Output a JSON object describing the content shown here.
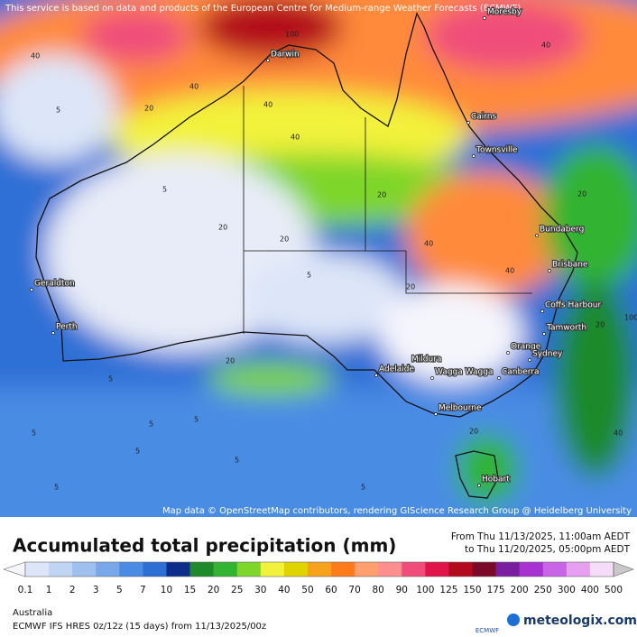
{
  "header": {
    "notice": "This service is based on data and products of the European Centre for Medium-range Weather Forecasts (ECMWF)"
  },
  "map": {
    "attribution": "Map data © OpenStreetMap contributors, rendering GIScience Research Group @ Heidelberg University",
    "cities": [
      "Moresby",
      "Darwin",
      "Cairns",
      "Townsville",
      "Bundaberg",
      "Brisbane",
      "Coffs Harbour",
      "Tamworth",
      "Orange",
      "Sydney",
      "Canberra",
      "Mildura",
      "Wagga Wagga",
      "Adelaide",
      "Melbourne",
      "Hobart",
      "Geraldton",
      "Perth"
    ],
    "contour_labels": [
      "40",
      "100",
      "40",
      "20",
      "40",
      "40",
      "20",
      "5",
      "5",
      "20",
      "20",
      "5",
      "5",
      "5",
      "40",
      "20",
      "5",
      "5",
      "5",
      "20",
      "40",
      "20",
      "100",
      "5",
      "5",
      "20",
      "40",
      "20",
      "5",
      "40"
    ]
  },
  "legend": {
    "title": "Accumulated total precipitation (mm)",
    "from": "From Thu 11/13/2025, 11:00am AEDT",
    "to": "to Thu 11/20/2025, 05:00pm AEDT",
    "labels": [
      "0.1",
      "1",
      "2",
      "3",
      "5",
      "7",
      "10",
      "15",
      "20",
      "25",
      "30",
      "40",
      "50",
      "60",
      "70",
      "80",
      "90",
      "100",
      "125",
      "150",
      "175",
      "200",
      "250",
      "300",
      "400",
      "500"
    ],
    "colors": [
      "#f5f5fc",
      "#dde6f8",
      "#c0d4f3",
      "#9ec0ee",
      "#78a8ea",
      "#4a8ce4",
      "#2e6fd6",
      "#0e2d8a",
      "#1f8a2a",
      "#32b432",
      "#7ed62a",
      "#f2f23a",
      "#e0d400",
      "#f7a21b",
      "#ff7b1a",
      "#ff9e6e",
      "#ff8f8f",
      "#f04d7a",
      "#e0144a",
      "#b40a1e",
      "#7a0a28",
      "#7a1ea0",
      "#a832d2",
      "#c864e6",
      "#e6a0f0",
      "#f5dcf8",
      "#c8c8c8"
    ]
  },
  "footer": {
    "region": "Australia",
    "model": "ECMWF IFS HRES 0z/12z (15 days)  from  11/13/2025/00z",
    "logo_ecmwf": "ECMWF",
    "brand": "meteologix.com"
  }
}
